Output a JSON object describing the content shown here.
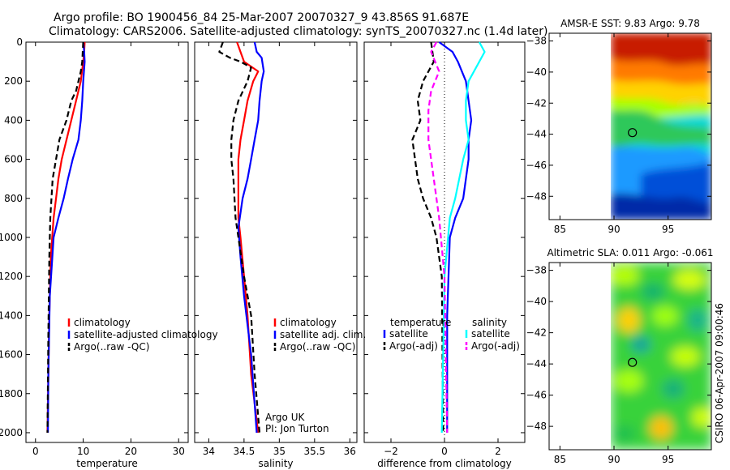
{
  "header": {
    "line1": "Argo profile: BO 1900456_84 25-Mar-2007 20070327_9 43.856S 91.687E",
    "line2": "Climatology: CARS2006. Satellite-adjusted climatology: synTS_20070327.nc (1.4d later)"
  },
  "side_label": "CSIRO 06-Apr-2007 09:00:46",
  "colors": {
    "black": "#000000",
    "red": "#ff0000",
    "blue": "#0000ff",
    "cyan": "#00ffff",
    "magenta": "#ff00ff"
  },
  "chart_data": [
    {
      "type": "line",
      "xlabel": "temperature",
      "xlim": [
        -2,
        32
      ],
      "xticks": [
        0,
        10,
        20,
        30
      ],
      "ylim": [
        0,
        2050
      ],
      "yticks": [
        0,
        200,
        400,
        600,
        800,
        1000,
        1200,
        1400,
        1600,
        1800,
        2000
      ],
      "legend": [
        "climatology",
        "satellite-adjusted climatology",
        "Argo(..raw -QC)"
      ],
      "series": [
        {
          "color": "#ff0000",
          "style": "solid",
          "x": [
            10.3,
            10.2,
            10.0,
            9.5,
            8.5,
            7.5,
            6.5,
            5.5,
            4.8,
            4.3,
            3.8,
            3.2,
            2.9,
            2.7,
            2.5
          ],
          "y": [
            0,
            50,
            100,
            200,
            300,
            400,
            500,
            600,
            700,
            800,
            900,
            1100,
            1400,
            1700,
            2000
          ]
        },
        {
          "color": "#0000ff",
          "style": "solid",
          "x": [
            10.0,
            10.2,
            10.3,
            10.0,
            9.8,
            9.5,
            9.0,
            7.8,
            6.8,
            5.9,
            4.8,
            3.8,
            3.0,
            2.7,
            2.6
          ],
          "y": [
            0,
            50,
            100,
            200,
            300,
            400,
            500,
            600,
            700,
            800,
            900,
            1000,
            1300,
            1700,
            2000
          ]
        },
        {
          "color": "#000000",
          "style": "dashed",
          "x": [
            10.0,
            9.8,
            9.5,
            9.0,
            8.5,
            7.5,
            6.5,
            5.0,
            4.3,
            3.6,
            3.1,
            2.9,
            2.7,
            2.5
          ],
          "y": [
            0,
            100,
            150,
            200,
            250,
            300,
            400,
            500,
            600,
            700,
            900,
            1100,
            1500,
            2000
          ]
        }
      ]
    },
    {
      "type": "line",
      "xlabel": "salinity",
      "xlim": [
        33.8,
        36.1
      ],
      "xticks": [
        34,
        34.5,
        35,
        35.5,
        36
      ],
      "ylim": [
        0,
        2050
      ],
      "yticks": [
        0,
        200,
        400,
        600,
        800,
        1000,
        1200,
        1400,
        1600,
        1800,
        2000
      ],
      "legend": [
        "climatology",
        "satellite adj. clim.",
        "Argo(..raw -QC)"
      ],
      "annotations": [
        "Argo UK",
        "PI: Jon Turton"
      ],
      "series": [
        {
          "color": "#ff0000",
          "style": "solid",
          "x": [
            34.4,
            34.45,
            34.5,
            34.7,
            34.63,
            34.55,
            34.5,
            34.45,
            34.42,
            34.42,
            34.42,
            34.45,
            34.5,
            34.55,
            34.6,
            34.7
          ],
          "y": [
            0,
            50,
            100,
            150,
            200,
            300,
            400,
            500,
            600,
            700,
            900,
            1000,
            1200,
            1400,
            1700,
            2000
          ]
        },
        {
          "color": "#0000ff",
          "style": "solid",
          "x": [
            34.65,
            34.68,
            34.75,
            34.78,
            34.75,
            34.72,
            34.7,
            34.65,
            34.6,
            34.55,
            34.48,
            34.42,
            34.45,
            34.5,
            34.6,
            34.68
          ],
          "y": [
            0,
            50,
            80,
            150,
            200,
            300,
            400,
            500,
            600,
            700,
            800,
            950,
            1100,
            1300,
            1600,
            2000
          ]
        },
        {
          "color": "#000000",
          "style": "dashed",
          "x": [
            34.2,
            34.15,
            34.3,
            34.45,
            34.6,
            34.55,
            34.42,
            34.35,
            34.32,
            34.32,
            34.35,
            34.38,
            34.42,
            34.5,
            34.6,
            34.65,
            34.72
          ],
          "y": [
            0,
            50,
            80,
            100,
            130,
            200,
            300,
            400,
            500,
            600,
            700,
            900,
            1000,
            1200,
            1400,
            1700,
            2000
          ]
        }
      ]
    },
    {
      "type": "line",
      "xlabel": "difference from climatology",
      "xlim": [
        -3,
        3
      ],
      "xticks": [
        -2,
        0,
        2
      ],
      "ylim": [
        0,
        2050
      ],
      "yticks": [
        0,
        200,
        400,
        600,
        800,
        1000,
        1200,
        1400,
        1600,
        1800,
        2000
      ],
      "legend": [
        "temperature",
        "satellite",
        "Argo(-adj)",
        "salinity",
        "satellite",
        "Argo(-adj)"
      ],
      "series": [
        {
          "color": "#0000ff",
          "style": "solid",
          "x": [
            -0.2,
            0.3,
            0.5,
            0.8,
            0.9,
            1.0,
            0.9,
            0.9,
            0.8,
            0.7,
            0.4,
            0.2,
            0.1,
            0.1
          ],
          "y": [
            0,
            50,
            100,
            200,
            300,
            400,
            500,
            600,
            700,
            800,
            900,
            1000,
            1400,
            2000
          ]
        },
        {
          "color": "#000000",
          "style": "dashed",
          "x": [
            -0.5,
            -0.4,
            -0.8,
            -1.0,
            -0.9,
            -1.2,
            -1.0,
            -0.8,
            -0.5,
            -0.3,
            -0.1,
            -0.05
          ],
          "y": [
            0,
            100,
            200,
            300,
            400,
            500,
            700,
            800,
            900,
            1000,
            1200,
            2000
          ]
        },
        {
          "color": "#00ffff",
          "style": "solid",
          "x": [
            1.3,
            1.5,
            1.3,
            0.9,
            0.8,
            0.8,
            0.9,
            0.7,
            0.4,
            0.2,
            0.0,
            -0.1
          ],
          "y": [
            0,
            50,
            100,
            200,
            300,
            400,
            500,
            600,
            800,
            900,
            1200,
            2000
          ]
        },
        {
          "color": "#ff00ff",
          "style": "dashed",
          "x": [
            -0.3,
            -0.5,
            -0.2,
            -0.5,
            -0.6,
            -0.6,
            -0.4,
            -0.2,
            0.0,
            0.1
          ],
          "y": [
            0,
            50,
            150,
            250,
            350,
            500,
            700,
            900,
            1200,
            2000
          ]
        }
      ]
    },
    {
      "type": "heatmap",
      "title": "AMSR-E SST: 9.83  Argo: 9.78",
      "xlim": [
        84,
        99
      ],
      "xticks": [
        85,
        90,
        95
      ],
      "ylim": [
        -49.5,
        -37.5
      ],
      "yticks": [
        -38,
        -40,
        -42,
        -44,
        -46,
        -48
      ],
      "data_extent_x": [
        90,
        99
      ],
      "marker": {
        "lon": 91.7,
        "lat": -43.9
      }
    },
    {
      "type": "heatmap",
      "title": "Altimetric SLA: 0.011  Argo: -0.061",
      "xlim": [
        84,
        99
      ],
      "xticks": [
        85,
        90,
        95
      ],
      "ylim": [
        -49.5,
        -37.5
      ],
      "yticks": [
        -38,
        -40,
        -42,
        -44,
        -46,
        -48
      ],
      "data_extent_x": [
        90,
        99
      ],
      "marker": {
        "lon": 91.7,
        "lat": -43.9
      }
    }
  ]
}
